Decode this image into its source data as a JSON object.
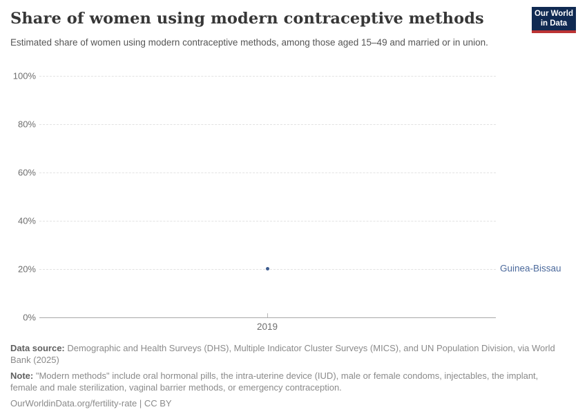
{
  "header": {
    "title": "Share of women using modern contraceptive methods",
    "subtitle": "Estimated share of women using modern contraceptive methods, among those aged 15–49 and married or in union.",
    "logo": {
      "line1": "Our World",
      "line2": "in Data",
      "bg_color": "#102a52",
      "accent_color": "#bc3434"
    }
  },
  "chart_data": {
    "type": "scatter",
    "title": "Share of women using modern contraceptive methods",
    "x": [
      2019
    ],
    "xtick_labels": [
      "2019"
    ],
    "series": [
      {
        "name": "Guinea-Bissau",
        "values": [
          20.2
        ]
      }
    ],
    "xlabel": "",
    "ylabel": "",
    "ylim": [
      0,
      100
    ],
    "yticks": [
      0,
      20,
      40,
      60,
      80,
      100
    ],
    "ytick_format": "{v}%",
    "grid": "horizontal-dashed",
    "legend_position": "right-of-point",
    "colors": {
      "point": "#3d5c8f",
      "entity_label": "#4c6a9c",
      "gridline": "#e2e2e2",
      "axis": "#a8a8a8"
    }
  },
  "footer": {
    "data_source_label": "Data source:",
    "data_source_text": " Demographic and Health Surveys (DHS), Multiple Indicator Cluster Surveys (MICS), and UN Population Division, via World Bank (2025)",
    "note_label": "Note:",
    "note_text": " \"Modern methods\" include oral hormonal pills, the intra-uterine device (IUD), male or female condoms, injectables, the implant, female and male sterilization, vaginal barrier methods, or emergency contraception.",
    "license": "OurWorldinData.org/fertility-rate | CC BY"
  }
}
